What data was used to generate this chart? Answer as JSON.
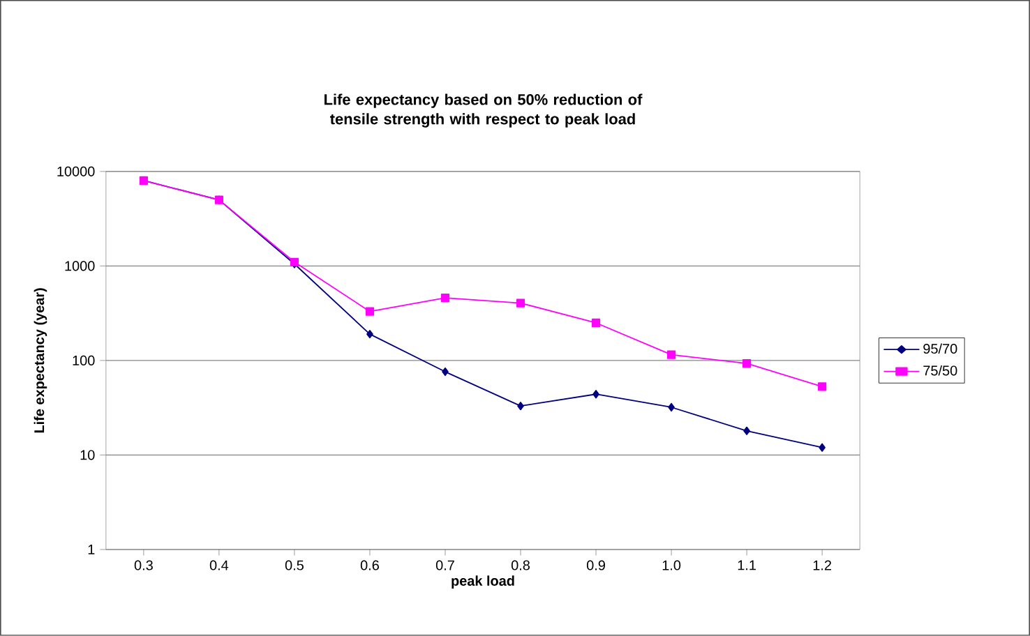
{
  "chart_data": {
    "type": "line",
    "title": "Life expectancy based on 50% reduction of tensile strength with respect to peak load",
    "xlabel": "peak load",
    "ylabel": "Life expectancy (year)",
    "categories": [
      "0.3",
      "0.4",
      "0.5",
      "0.6",
      "0.7",
      "0.8",
      "0.9",
      "1.0",
      "1.1",
      "1.2"
    ],
    "series": [
      {
        "name": "95/70",
        "color": "#000080",
        "marker": "diamond",
        "values": [
          8000,
          5000,
          1050,
          190,
          76,
          33,
          44,
          32,
          18,
          12
        ]
      },
      {
        "name": "75/50",
        "color": "#ff00ff",
        "marker": "square",
        "values": [
          8000,
          5000,
          1100,
          330,
          460,
          405,
          250,
          115,
          93,
          53
        ]
      }
    ],
    "log": "y",
    "ylim": [
      1,
      10000
    ],
    "yticks": [
      1,
      10,
      100,
      1000,
      10000
    ],
    "grid": "y",
    "legend": "right",
    "line_style": "solid"
  }
}
